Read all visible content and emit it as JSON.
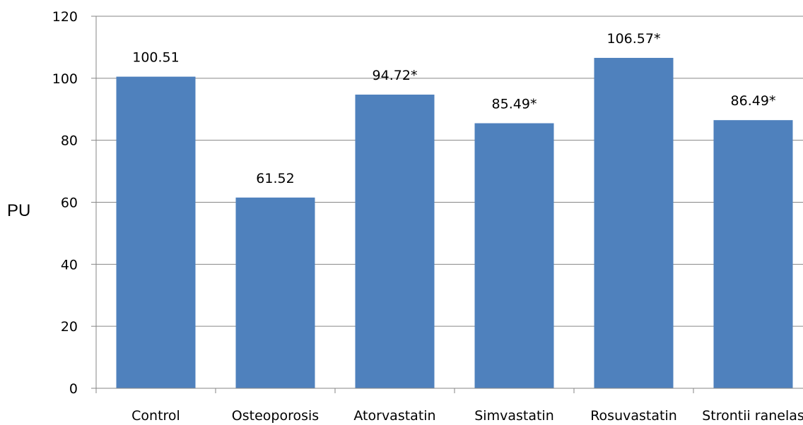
{
  "chart_data": {
    "type": "bar",
    "title": "",
    "xlabel": "",
    "ylabel": "PU",
    "categories": [
      "Control",
      "Osteoporosis",
      "Atorvastatin",
      "Simvastatin",
      "Rosuvastatin",
      "Strontii ranelas"
    ],
    "values": [
      100.51,
      61.52,
      94.72,
      85.49,
      106.57,
      86.49
    ],
    "data_labels": [
      "100.51",
      "61.52",
      "94.72*",
      "85.49*",
      "106.57*",
      "86.49*"
    ],
    "ylim": [
      0,
      120
    ],
    "yticks": [
      0,
      20,
      40,
      60,
      80,
      100,
      120
    ],
    "grid": true,
    "legend": "none",
    "colors": {
      "bar": "#4F81BD",
      "grid": "#868686",
      "axis": "#868686"
    }
  }
}
